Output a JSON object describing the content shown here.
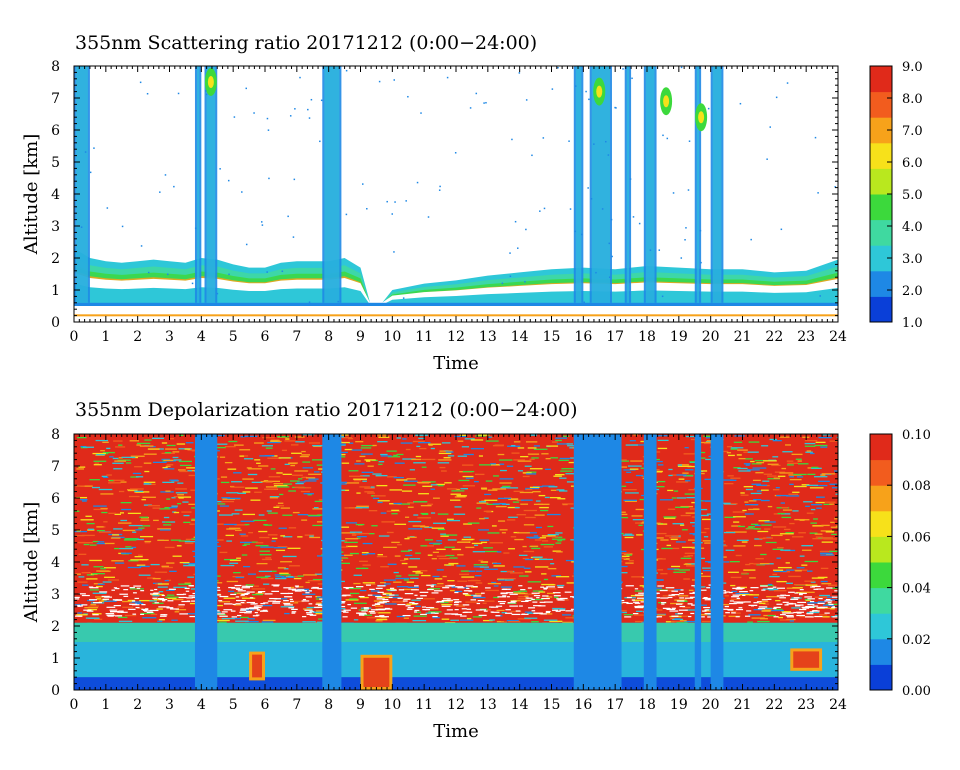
{
  "chart_data": [
    {
      "type": "heatmap",
      "title": "355nm Scattering ratio  20171212 (0:00−24:00)",
      "xlabel": "Time",
      "ylabel": "Altitude [km]",
      "xlim": [
        0,
        24
      ],
      "ylim": [
        0,
        8
      ],
      "x_ticks": [
        "0",
        "1",
        "2",
        "3",
        "4",
        "5",
        "6",
        "7",
        "8",
        "9",
        "10",
        "11",
        "12",
        "13",
        "14",
        "15",
        "16",
        "17",
        "18",
        "19",
        "20",
        "21",
        "22",
        "23",
        "24"
      ],
      "y_ticks": [
        "0",
        "1",
        "2",
        "3",
        "4",
        "5",
        "6",
        "7",
        "8"
      ],
      "colorbar": {
        "min": 1.0,
        "max": 9.0,
        "tick_labels": [
          "1.0",
          "2.0",
          "3.0",
          "4.0",
          "5.0",
          "6.0",
          "7.0",
          "8.0",
          "9.0"
        ],
        "colors": [
          "#0a3fd8",
          "#1e88e5",
          "#2ec7d8",
          "#3fd9a0",
          "#3cd93c",
          "#b9e81e",
          "#f7e11a",
          "#f7a21a",
          "#f25c1e",
          "#e02a1a"
        ]
      },
      "layer_top_km": [
        [
          0,
          2.3
        ],
        [
          0.5,
          2.0
        ],
        [
          1,
          1.9
        ],
        [
          1.5,
          1.85
        ],
        [
          2,
          1.9
        ],
        [
          2.5,
          1.95
        ],
        [
          3,
          1.9
        ],
        [
          3.5,
          1.85
        ],
        [
          4,
          2.0
        ],
        [
          4.5,
          1.95
        ],
        [
          5,
          1.8
        ],
        [
          5.5,
          1.7
        ],
        [
          6,
          1.7
        ],
        [
          6.5,
          1.85
        ],
        [
          7,
          1.9
        ],
        [
          7.5,
          1.9
        ],
        [
          8,
          1.9
        ],
        [
          8.5,
          2.0
        ],
        [
          9,
          1.7
        ],
        [
          9.3,
          0.6
        ],
        [
          9.6,
          0.5
        ],
        [
          10,
          1.0
        ],
        [
          11,
          1.2
        ],
        [
          12,
          1.3
        ],
        [
          13,
          1.45
        ],
        [
          14,
          1.55
        ],
        [
          15,
          1.65
        ],
        [
          16,
          1.7
        ],
        [
          17,
          1.65
        ],
        [
          18,
          1.75
        ],
        [
          19,
          1.7
        ],
        [
          20,
          1.65
        ],
        [
          21,
          1.65
        ],
        [
          22,
          1.55
        ],
        [
          23,
          1.6
        ],
        [
          24,
          1.95
        ]
      ],
      "cloud_columns_h": [
        [
          0.0,
          0.5
        ],
        [
          3.8,
          4.0
        ],
        [
          4.1,
          4.5
        ],
        [
          7.8,
          8.4
        ],
        [
          15.7,
          16.0
        ],
        [
          16.2,
          16.9
        ],
        [
          17.3,
          17.5
        ],
        [
          17.9,
          18.3
        ],
        [
          19.5,
          19.7
        ],
        [
          20.0,
          20.4
        ]
      ]
    },
    {
      "type": "heatmap",
      "title": "355nm Depolarization ratio  20171212 (0:00−24:00)",
      "xlabel": "Time",
      "ylabel": "Altitude [km]",
      "xlim": [
        0,
        24
      ],
      "ylim": [
        0,
        8
      ],
      "x_ticks": [
        "0",
        "1",
        "2",
        "3",
        "4",
        "5",
        "6",
        "7",
        "8",
        "9",
        "10",
        "11",
        "12",
        "13",
        "14",
        "15",
        "16",
        "17",
        "18",
        "19",
        "20",
        "21",
        "22",
        "23",
        "24"
      ],
      "y_ticks": [
        "0",
        "1",
        "2",
        "3",
        "4",
        "5",
        "6",
        "7",
        "8"
      ],
      "colorbar": {
        "min": 0.0,
        "max": 0.1,
        "tick_labels": [
          "0.00",
          "0.02",
          "0.04",
          "0.06",
          "0.08",
          "0.10"
        ],
        "colors": [
          "#0a3fd8",
          "#1e88e5",
          "#2ec7d8",
          "#3fd9a0",
          "#3cd93c",
          "#b9e81e",
          "#f7e11a",
          "#f7a21a",
          "#f25c1e",
          "#e02a1a"
        ]
      },
      "low_depol_columns_h": [
        [
          3.8,
          4.5
        ],
        [
          7.8,
          8.4
        ],
        [
          15.7,
          17.2
        ],
        [
          17.9,
          18.3
        ],
        [
          19.5,
          19.7
        ],
        [
          20.0,
          20.4
        ]
      ],
      "high_depol_patches": [
        {
          "t": [
            9.0,
            10.0
          ],
          "alt_km": [
            0,
            1.1
          ]
        },
        {
          "t": [
            5.5,
            6.0
          ],
          "alt_km": [
            0.3,
            1.2
          ]
        },
        {
          "t": [
            22.5,
            23.5
          ],
          "alt_km": [
            0.6,
            1.3
          ]
        }
      ]
    }
  ]
}
